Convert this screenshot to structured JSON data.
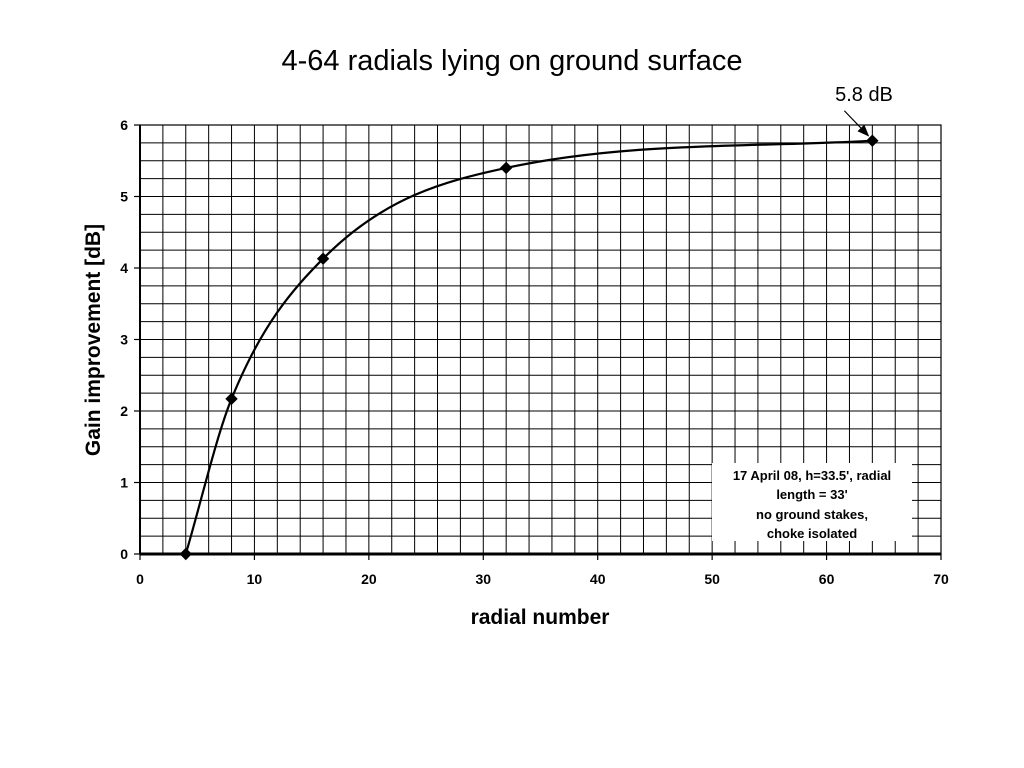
{
  "chart_data": {
    "type": "line",
    "title": "4-64 radials lying on ground surface",
    "xlabel": "radial number",
    "ylabel": "Gain improvement [dB]",
    "xlim": [
      0,
      70
    ],
    "ylim": [
      0,
      6
    ],
    "x_ticks": [
      "0",
      "10",
      "20",
      "30",
      "40",
      "50",
      "60",
      "70"
    ],
    "y_ticks": [
      "0",
      "1",
      "2",
      "3",
      "4",
      "5",
      "6"
    ],
    "grid": true,
    "legend": "none",
    "series": [
      {
        "x": [
          4,
          8,
          16,
          32,
          64
        ],
        "values": [
          0,
          2.17,
          4.13,
          5.4,
          5.78
        ],
        "marker": "diamond",
        "line": "smooth",
        "color": "#000000"
      }
    ],
    "annotations": [
      {
        "text": "5.8 dB",
        "points_to": {
          "x": 64,
          "y": 5.78
        }
      }
    ],
    "note_lines": [
      "17 April 08, h=33.5', radial",
      "length = 33'",
      "no ground stakes,",
      "choke isolated"
    ]
  }
}
